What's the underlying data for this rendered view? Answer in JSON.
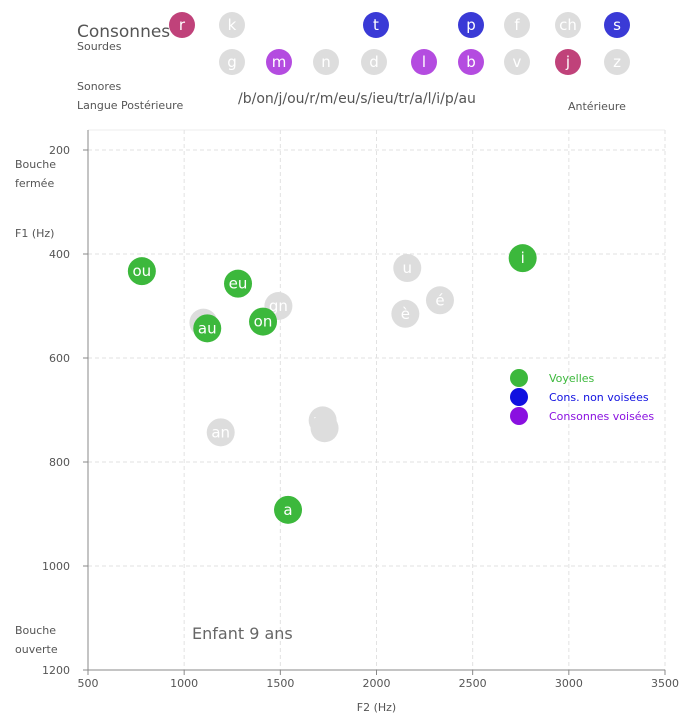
{
  "header": {
    "title": "Consonnes",
    "sourdes_label": "Sourdes",
    "sonores_label": "Sonores",
    "posterior_label": "Langue Postérieure",
    "anterior_label": "Antérieure",
    "sequence": "/b/on/j/ou/r/m/eu/s/ieu/tr/a/l/i/p/au"
  },
  "consonants": {
    "row1": [
      {
        "label": "r",
        "color": "#c0427a",
        "active": true
      },
      {
        "label": "k",
        "color": "#dddddd",
        "active": false
      },
      {
        "label": "t",
        "color": "#3a3ad6",
        "active": true
      },
      {
        "label": "p",
        "color": "#3a3ad6",
        "active": true
      },
      {
        "label": "f",
        "color": "#dddddd",
        "active": false
      },
      {
        "label": "ch",
        "color": "#dddddd",
        "active": false
      },
      {
        "label": "s",
        "color": "#3a3ad6",
        "active": true
      }
    ],
    "row2": [
      {
        "label": "g",
        "color": "#dddddd",
        "active": false
      },
      {
        "label": "m",
        "color": "#b44ce0",
        "active": true
      },
      {
        "label": "n",
        "color": "#dddddd",
        "active": false
      },
      {
        "label": "d",
        "color": "#dddddd",
        "active": false
      },
      {
        "label": "l",
        "color": "#b44ce0",
        "active": true
      },
      {
        "label": "b",
        "color": "#b44ce0",
        "active": true
      },
      {
        "label": "v",
        "color": "#dddddd",
        "active": false
      },
      {
        "label": "j",
        "color": "#c0427a",
        "active": true
      },
      {
        "label": "z",
        "color": "#dddddd",
        "active": false
      }
    ]
  },
  "chart_data": {
    "type": "scatter",
    "xlabel": "F2 (Hz)",
    "ylabel": "F1 (Hz)",
    "xlim": [
      500,
      3500
    ],
    "ylim": [
      200,
      1200
    ],
    "y_inverted": true,
    "x_ticks": [
      500,
      1000,
      1500,
      2000,
      2500,
      3000,
      3500
    ],
    "y_ticks": [
      200,
      400,
      600,
      800,
      1000,
      1200
    ],
    "grid": true,
    "y_top_label": [
      "Bouche",
      "fermée"
    ],
    "y_bottom_label": [
      "Bouche",
      "ouverte"
    ],
    "annotation": "Enfant 9 ans",
    "points": [
      {
        "label": "ou",
        "x": 780,
        "y": 433,
        "active": true
      },
      {
        "label": "eu",
        "x": 1280,
        "y": 457,
        "active": true
      },
      {
        "label": "on",
        "x": 1410,
        "y": 530,
        "active": true
      },
      {
        "label": "au",
        "x": 1120,
        "y": 543,
        "active": true
      },
      {
        "label": "i",
        "x": 2760,
        "y": 408,
        "active": true
      },
      {
        "label": "a",
        "x": 1540,
        "y": 892,
        "active": true
      },
      {
        "label": "gn",
        "x": 1490,
        "y": 500,
        "active": false
      },
      {
        "label": "",
        "x": 1100,
        "y": 532,
        "active": false
      },
      {
        "label": "u",
        "x": 2160,
        "y": 427,
        "active": false
      },
      {
        "label": "é",
        "x": 2330,
        "y": 489,
        "active": false
      },
      {
        "label": "è",
        "x": 2150,
        "y": 515,
        "active": false
      },
      {
        "label": "un",
        "x": 1720,
        "y": 720,
        "active": false
      },
      {
        "label": "",
        "x": 1730,
        "y": 735,
        "active": false
      },
      {
        "label": "an",
        "x": 1190,
        "y": 743,
        "active": false
      }
    ],
    "legend": [
      {
        "name": "Voyelles",
        "color": "#3cb83c"
      },
      {
        "name": "Cons. non voisées",
        "color": "#1010e0"
      },
      {
        "name": "Consonnes voisées",
        "color": "#8a10e0"
      }
    ],
    "colors": {
      "vowel": "#3cb83c",
      "inactive": "#dddddd",
      "grid": "#e2e2e2"
    }
  }
}
